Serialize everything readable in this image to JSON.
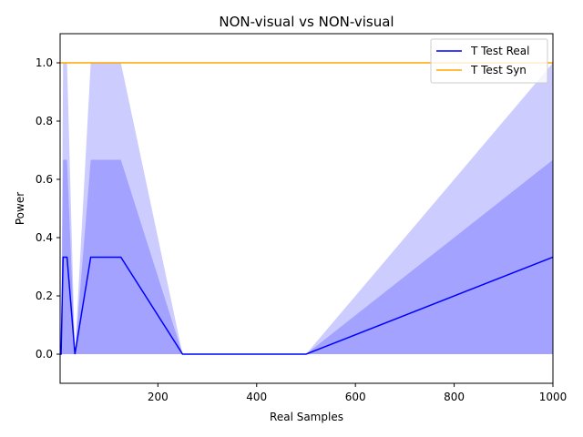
{
  "chart_data": {
    "type": "line",
    "title": "NON-visual vs NON-visual",
    "xlabel": "Real Samples",
    "ylabel": "Power",
    "xlim": [
      2,
      1000
    ],
    "ylim": [
      -0.1,
      1.1
    ],
    "x_ticks": [
      200,
      400,
      600,
      800,
      1000
    ],
    "x_tick_labels": [
      "200",
      "400",
      "600",
      "800",
      "1000"
    ],
    "y_ticks": [
      0.0,
      0.2,
      0.4,
      0.6,
      0.8,
      1.0
    ],
    "y_tick_labels": [
      "0.0",
      "0.2",
      "0.4",
      "0.6",
      "0.8",
      "1.0"
    ],
    "grid": false,
    "legend_position": "top-right",
    "x": [
      2,
      4,
      8,
      16,
      32,
      64,
      125,
      250,
      500,
      1000
    ],
    "series": [
      {
        "name": "T Test Real",
        "color": "#0000ff",
        "values": [
          0.0,
          0.0,
          0.333,
          0.333,
          0.0,
          0.333,
          0.333,
          0.0,
          0.0,
          0.333
        ],
        "band_inner_upper": [
          0.0,
          0.0,
          0.667,
          0.667,
          0.0,
          0.667,
          0.667,
          0.0,
          0.0,
          0.667
        ],
        "band_outer_upper": [
          0.0,
          0.0,
          1.0,
          1.0,
          0.0,
          1.0,
          1.0,
          0.0,
          0.0,
          1.0
        ],
        "band_lower": [
          0.0,
          0.0,
          0.0,
          0.0,
          0.0,
          0.0,
          0.0,
          0.0,
          0.0,
          0.0
        ],
        "band_color": "#0000ff"
      },
      {
        "name": "T Test Syn",
        "color": "#ffa500",
        "values": [
          1.0,
          1.0,
          1.0,
          1.0,
          1.0,
          1.0,
          1.0,
          1.0,
          1.0,
          1.0
        ]
      }
    ]
  }
}
